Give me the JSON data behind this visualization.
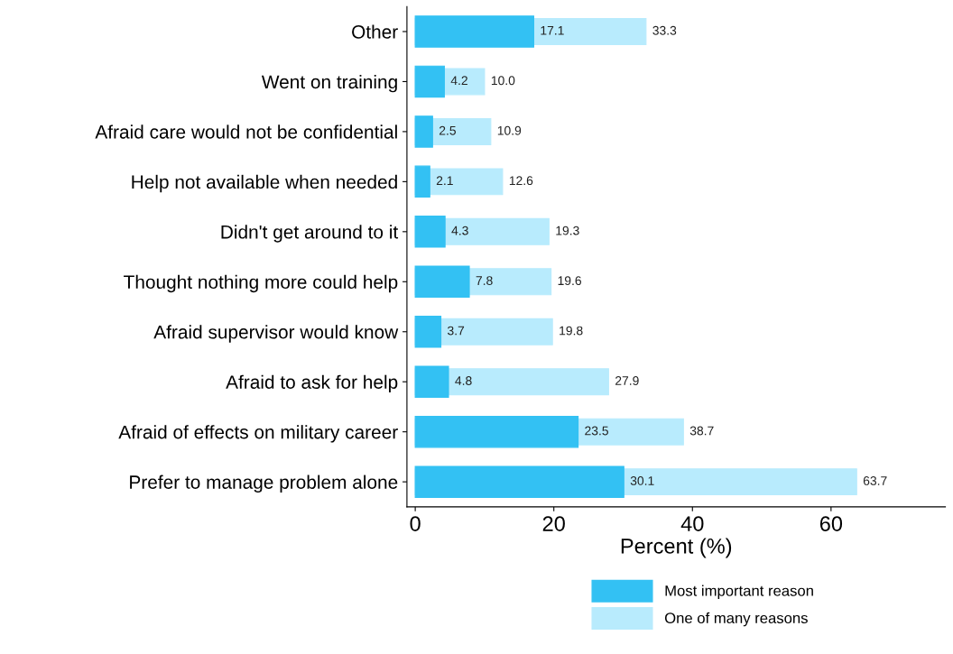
{
  "chart_data": {
    "type": "bar",
    "orientation": "horizontal",
    "xlabel": "Percent (%)",
    "categories": [
      "Other",
      "Went on training",
      "Afraid care would not be confidential",
      "Help not available when needed",
      "Didn't get around to it",
      "Thought nothing more could help",
      "Afraid supervisor would know",
      "Afraid to ask for help",
      "Afraid of effects on military career",
      "Prefer to manage problem alone"
    ],
    "series": [
      {
        "name": "Most important reason",
        "color": "#33c1f3",
        "values": [
          17.1,
          4.2,
          2.5,
          2.1,
          4.3,
          7.8,
          3.7,
          4.8,
          23.5,
          30.1
        ],
        "value_labels": [
          "17.1",
          "4.2",
          "2.5",
          "2.1",
          "4.3",
          "7.8",
          "3.7",
          "4.8",
          "23.5",
          "30.1"
        ]
      },
      {
        "name": "One of many reasons",
        "color": "#b8ebfd",
        "values": [
          33.3,
          10.0,
          10.9,
          12.6,
          19.3,
          19.6,
          19.8,
          27.9,
          38.7,
          63.7
        ],
        "value_labels": [
          "33.3",
          "10.0",
          "10.9",
          "12.6",
          "19.3",
          "19.6",
          "19.8",
          "27.9",
          "38.7",
          "63.7"
        ]
      }
    ],
    "xlim": [
      -1.2,
      76.5
    ],
    "xticks": [
      0,
      20,
      40,
      60
    ],
    "grid": false,
    "legend": "bottom"
  }
}
